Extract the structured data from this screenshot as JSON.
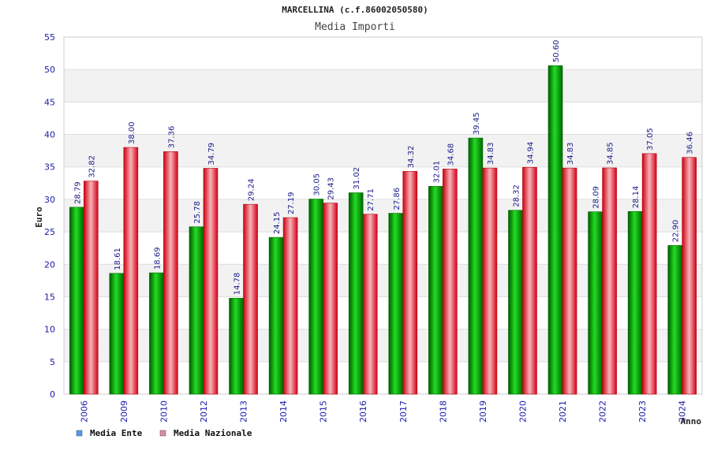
{
  "chart_data": {
    "type": "bar",
    "title": "MARCELLINA (c.f.86002050580)",
    "subtitle": "Media Importi",
    "xlabel": "Anno",
    "ylabel": "Euro",
    "ylim": [
      0,
      55
    ],
    "yticks": [
      0,
      5,
      10,
      15,
      20,
      25,
      30,
      35,
      40,
      45,
      50,
      55
    ],
    "grid": true,
    "legend_position": "bottom-left",
    "categories": [
      "2006",
      "2009",
      "2010",
      "2012",
      "2013",
      "2014",
      "2015",
      "2016",
      "2017",
      "2018",
      "2019",
      "2020",
      "2021",
      "2022",
      "2023",
      "2024"
    ],
    "series": [
      {
        "name": "Media Ente",
        "legend_color": "#5599ee",
        "color": "#00b400",
        "values": [
          28.79,
          18.61,
          18.69,
          25.78,
          14.78,
          24.15,
          30.05,
          31.02,
          27.86,
          32.01,
          39.45,
          28.32,
          50.6,
          28.09,
          28.14,
          22.9
        ],
        "labels": [
          "28.79",
          "18.61",
          "18.69",
          "25.78",
          "14.78",
          "24.15",
          "30.05",
          "31.02",
          "27.86",
          "32.01",
          "39.45",
          "28.32",
          "50.60",
          "28.09",
          "28.14",
          "22.90"
        ]
      },
      {
        "name": "Media Nazionale",
        "legend_color": "#dd88aa",
        "color": "#e8202c",
        "values": [
          32.82,
          38.0,
          37.36,
          34.79,
          29.24,
          27.19,
          29.43,
          27.71,
          34.32,
          34.68,
          34.83,
          34.94,
          34.83,
          34.85,
          37.05,
          36.46
        ],
        "labels": [
          "32.82",
          "38.00",
          "37.36",
          "34.79",
          "29.24",
          "27.19",
          "29.43",
          "27.71",
          "34.32",
          "34.68",
          "34.83",
          "34.94",
          "34.83",
          "34.85",
          "37.05",
          "36.46"
        ]
      }
    ]
  }
}
